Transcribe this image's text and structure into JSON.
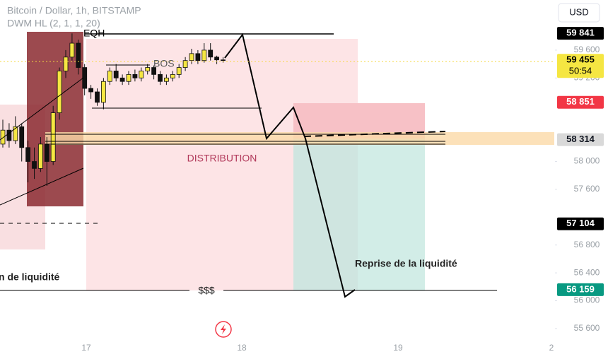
{
  "header": {
    "symbol": "Bitcoin / Dollar, 1h, BITSTAMP",
    "indicator": "DWM HL (2, 1, 1, 20)",
    "currency": "USD"
  },
  "annotations": {
    "eqh": "EQH",
    "bos": "BOS",
    "distribution": "DISTRIBUTION",
    "reprise": "Reprise de la liquidité",
    "left_liquidity": "n de liquidité",
    "dollars": "$$$"
  },
  "chart_data": {
    "type": "candlestick",
    "open": [
      58250,
      58450,
      58300,
      58500,
      58200,
      58000,
      57900,
      58250,
      58000,
      58700,
      59300,
      59500,
      59700,
      59350,
      59050,
      59000,
      58850,
      59150,
      59300,
      59200,
      59150,
      59250,
      59200,
      59300,
      59350,
      59250,
      59150,
      59200,
      59250,
      59350,
      59450,
      59550,
      59450,
      59600,
      59500,
      59460
    ],
    "high": [
      58600,
      58550,
      58650,
      58550,
      58300,
      58200,
      58350,
      58350,
      58800,
      59350,
      59600,
      59840,
      59750,
      59400,
      59100,
      59050,
      59200,
      59350,
      59400,
      59250,
      59300,
      59320,
      59350,
      59400,
      59380,
      59300,
      59250,
      59300,
      59400,
      59500,
      59620,
      59600,
      59700,
      59700,
      59520,
      59500
    ],
    "low": [
      58200,
      58200,
      58250,
      58000,
      57700,
      57750,
      57850,
      57650,
      57950,
      58600,
      59200,
      59450,
      59250,
      58950,
      58900,
      58800,
      58750,
      59100,
      59150,
      59100,
      59100,
      59150,
      59150,
      59250,
      59180,
      59100,
      59100,
      59150,
      59200,
      59300,
      59400,
      59400,
      59420,
      59450,
      59400,
      59420
    ],
    "close": [
      58450,
      58300,
      58500,
      58200,
      58000,
      57900,
      58250,
      58000,
      58700,
      59300,
      59500,
      59700,
      59350,
      59050,
      59000,
      58850,
      59150,
      59300,
      59200,
      59150,
      59250,
      59200,
      59300,
      59350,
      59250,
      59150,
      59200,
      59250,
      59350,
      59450,
      59550,
      59450,
      59600,
      59500,
      59460,
      59455
    ],
    "up_color": "#f5e642",
    "down_color": "#111111",
    "ylim": [
      55400,
      60320
    ],
    "yticks": [
      {
        "value": 55600,
        "label": "55 600"
      },
      {
        "value": 56000,
        "label": "56 000"
      },
      {
        "value": 56400,
        "label": "56 400"
      },
      {
        "value": 56800,
        "label": "56 800"
      },
      {
        "value": 57600,
        "label": "57 600"
      },
      {
        "value": 58000,
        "label": "58 000"
      },
      {
        "value": 59200,
        "label": "59 200"
      },
      {
        "value": 59600,
        "label": "59 600"
      }
    ],
    "x_labels": [
      "17",
      "18",
      "19",
      "2"
    ],
    "price_badges": {
      "values": [
        59841,
        59455,
        58851,
        58314,
        57104,
        56159
      ],
      "value_labels": [
        "59 841",
        "59 455",
        "58 851",
        "58 314",
        "57 104",
        "56 159"
      ],
      "colors": [
        "#000000",
        "#f5e642",
        "#f23645",
        "#d9d9d9",
        "#000000",
        "#089981"
      ],
      "text_colors": [
        "#ffffff",
        "#000000",
        "#ffffff",
        "#131722",
        "#ffffff",
        "#ffffff"
      ]
    },
    "countdown": "50:54"
  }
}
